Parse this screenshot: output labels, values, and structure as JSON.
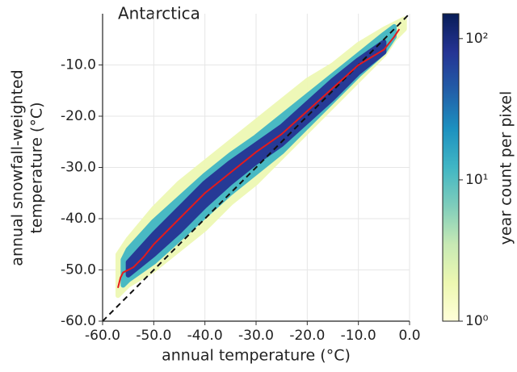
{
  "chart_data": {
    "type": "density",
    "title": "Antarctica",
    "xlabel": "annual temperature (°C)",
    "ylabel": [
      "annual snowfall-weighted",
      "temperature (°C)"
    ],
    "xlim": [
      -60,
      0
    ],
    "ylim": [
      -60,
      0
    ],
    "xticks": [
      {
        "value": -60,
        "label": "-60.0"
      },
      {
        "value": -50,
        "label": "-50.0"
      },
      {
        "value": -40,
        "label": "-40.0"
      },
      {
        "value": -30,
        "label": "-30.0"
      },
      {
        "value": -20,
        "label": "-20.0"
      },
      {
        "value": -10,
        "label": "-10.0"
      },
      {
        "value": 0,
        "label": "0.0"
      }
    ],
    "yticks": [
      {
        "value": -60,
        "label": "-60.0"
      },
      {
        "value": -50,
        "label": "-50.0"
      },
      {
        "value": -40,
        "label": "-40.0"
      },
      {
        "value": -30,
        "label": "-30.0"
      },
      {
        "value": -20,
        "label": "-20.0"
      },
      {
        "value": -10,
        "label": "-10.0"
      }
    ],
    "grid": true,
    "one_to_one_line": true,
    "bands": [
      {
        "color": "#eef8b4",
        "x": [
          -57,
          -55,
          -50,
          -45,
          -40,
          -35,
          -30,
          -25,
          -20,
          -15,
          -10,
          -5,
          -3,
          -1
        ],
        "lower": [
          -55,
          -53,
          -50,
          -46,
          -42,
          -37,
          -33,
          -28,
          -23,
          -18,
          -13,
          -8,
          -5,
          -3
        ],
        "upper": [
          -47,
          -44,
          -38,
          -33,
          -29,
          -25,
          -21,
          -17,
          -13,
          -10,
          -6,
          -3,
          -2,
          -1
        ]
      },
      {
        "color": "#41b6c4",
        "x": [
          -56,
          -55,
          -50,
          -45,
          -40,
          -35,
          -30,
          -25,
          -20,
          -15,
          -10,
          -5,
          -3
        ],
        "lower": [
          -53,
          -52,
          -48.5,
          -44,
          -39.5,
          -35,
          -31,
          -27,
          -22,
          -17,
          -12,
          -7.5,
          -4.5
        ],
        "upper": [
          -48,
          -46,
          -40.5,
          -36,
          -31.5,
          -27.5,
          -24,
          -20,
          -16,
          -12,
          -8,
          -4,
          -2.5
        ]
      },
      {
        "color": "#253494",
        "x": [
          -55,
          -50,
          -45,
          -40,
          -35,
          -30,
          -25,
          -20,
          -15,
          -10,
          -5
        ],
        "lower": [
          -51,
          -47,
          -42.5,
          -37.5,
          -33,
          -29,
          -25.5,
          -21,
          -16.5,
          -11.5,
          -7.5
        ],
        "upper": [
          -48.5,
          -43,
          -38,
          -33,
          -29,
          -25.5,
          -22,
          -17.5,
          -13,
          -9,
          -5.5
        ]
      }
    ],
    "line": {
      "color": "#e41a1c",
      "x": [
        -57,
        -56.5,
        -56,
        -54,
        -52,
        -50,
        -45,
        -40,
        -35,
        -30,
        -25,
        -20,
        -15,
        -10,
        -5,
        -3,
        -2
      ],
      "values": [
        -53.5,
        -51.5,
        -50.5,
        -49.5,
        -47.5,
        -45,
        -40,
        -35,
        -31,
        -27,
        -23.5,
        -19,
        -14.5,
        -10,
        -7,
        -4.5,
        -3
      ]
    },
    "colorbar": {
      "label": "year count per pixel",
      "scale": "log",
      "lim": [
        1,
        150
      ],
      "ticks": [
        {
          "value": 1,
          "label": "10⁰"
        },
        {
          "value": 10,
          "label": "10¹"
        },
        {
          "value": 100,
          "label": "10²"
        }
      ],
      "colormap": [
        "#ffffd9",
        "#edf8b1",
        "#c7e9b4",
        "#7fcdbb",
        "#41b6c4",
        "#1d91c0",
        "#225ea8",
        "#253494",
        "#081d58"
      ]
    }
  }
}
